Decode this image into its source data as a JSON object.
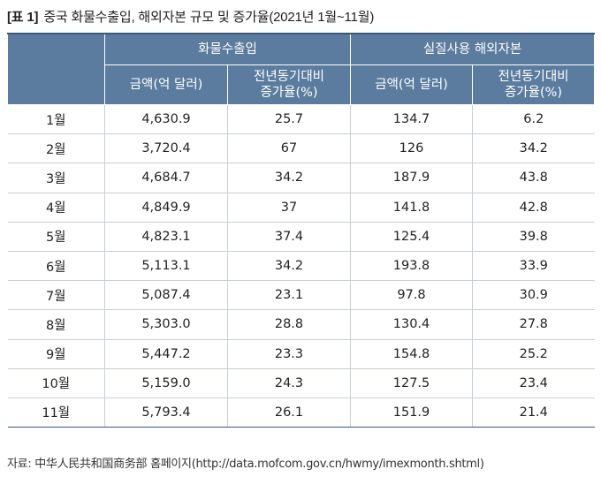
{
  "title": {
    "tag": "[표 1]",
    "text": "중국 화물수출입, 해외자본 규모 및 증가율(2021년 1월~11월)"
  },
  "table": {
    "group_headers": [
      "화물수출입",
      "실질사용 해외자본"
    ],
    "sub_headers": [
      "금액(억 달러)",
      "전년동기대비\n증가율(%)",
      "금액(억 달러)",
      "전년동기대비\n증가율(%)"
    ],
    "rows": [
      {
        "month": "1월",
        "trade_amount": "4,630.9",
        "trade_growth": "25.7",
        "fdi_amount": "134.7",
        "fdi_growth": "6.2"
      },
      {
        "month": "2월",
        "trade_amount": "3,720.4",
        "trade_growth": "67",
        "fdi_amount": "126",
        "fdi_growth": "34.2"
      },
      {
        "month": "3월",
        "trade_amount": "4,684.7",
        "trade_growth": "34.2",
        "fdi_amount": "187.9",
        "fdi_growth": "43.8"
      },
      {
        "month": "4월",
        "trade_amount": "4,849.9",
        "trade_growth": "37",
        "fdi_amount": "141.8",
        "fdi_growth": "42.8"
      },
      {
        "month": "5월",
        "trade_amount": "4,823.1",
        "trade_growth": "37.4",
        "fdi_amount": "125.4",
        "fdi_growth": "39.8"
      },
      {
        "month": "6월",
        "trade_amount": "5,113.1",
        "trade_growth": "34.2",
        "fdi_amount": "193.8",
        "fdi_growth": "33.9"
      },
      {
        "month": "7월",
        "trade_amount": "5,087.4",
        "trade_growth": "23.1",
        "fdi_amount": "97.8",
        "fdi_growth": "30.9"
      },
      {
        "month": "8월",
        "trade_amount": "5,303.0",
        "trade_growth": "28.8",
        "fdi_amount": "130.4",
        "fdi_growth": "27.8"
      },
      {
        "month": "9월",
        "trade_amount": "5,447.2",
        "trade_growth": "23.3",
        "fdi_amount": "154.8",
        "fdi_growth": "25.2"
      },
      {
        "month": "10월",
        "trade_amount": "5,159.0",
        "trade_growth": "24.3",
        "fdi_amount": "127.5",
        "fdi_growth": "23.4"
      },
      {
        "month": "11월",
        "trade_amount": "5,793.4",
        "trade_growth": "26.1",
        "fdi_amount": "151.9",
        "fdi_growth": "21.4"
      }
    ]
  },
  "source": "자료: 中华人民共和国商务部 홈페이지(http://data.mofcom.gov.cn/hwmy/imexmonth.shtml)",
  "colors": {
    "header_bg": "#5b7c9f",
    "header_text": "#ffffff",
    "grid_line": "#c8ced6",
    "rule_dark": "#3a5878"
  }
}
